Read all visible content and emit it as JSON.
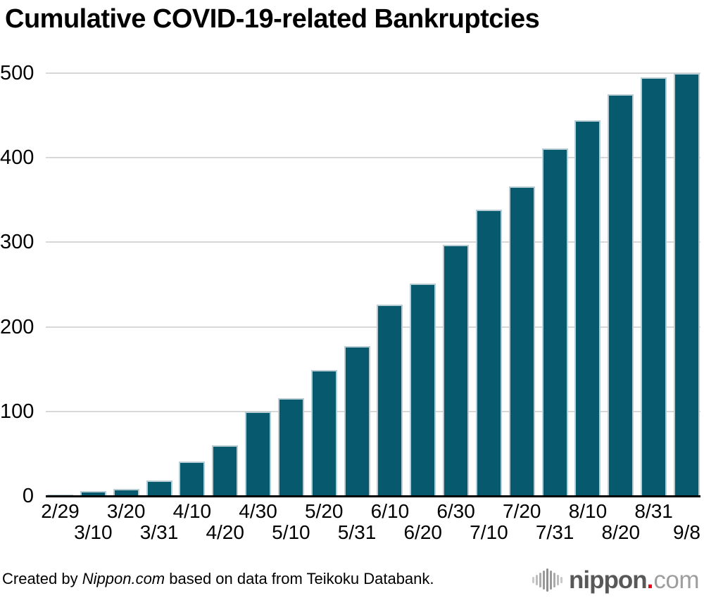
{
  "title": "Cumulative COVID-19-related Bankruptcies",
  "footer": {
    "prefix": "Created by ",
    "source_name": "Nippon.com",
    "suffix": " based on data from Teikoku Databank."
  },
  "logo": {
    "name": "nippon",
    "dot": ".",
    "tld": "com"
  },
  "colors": {
    "bar_fill": "#075a6e",
    "bar_edge": "#b7ccd3",
    "gridline": "#d8d8d8",
    "axis": "#000000",
    "logo_dark_gray": "#585858",
    "logo_light_gray": "#9e9e9e",
    "logo_red_dot": "#e60012"
  },
  "chart_data": {
    "type": "bar",
    "title": "Cumulative COVID-19-related Bankruptcies",
    "categories": [
      "2/29",
      "3/10",
      "3/20",
      "3/31",
      "4/10",
      "4/20",
      "4/30",
      "5/10",
      "5/20",
      "5/31",
      "6/10",
      "6/20",
      "6/30",
      "7/10",
      "7/20",
      "7/31",
      "8/10",
      "8/20",
      "8/31",
      "9/8"
    ],
    "values": [
      2,
      6,
      8,
      18,
      41,
      60,
      100,
      116,
      149,
      177,
      226,
      251,
      297,
      339,
      366,
      411,
      444,
      475,
      495,
      500
    ],
    "xlabel": "",
    "ylabel": "",
    "ylim": [
      0,
      500
    ],
    "yticks": [
      0,
      100,
      200,
      300,
      400,
      500
    ],
    "grid": true,
    "legend": false,
    "x_labels_staggered": true
  }
}
